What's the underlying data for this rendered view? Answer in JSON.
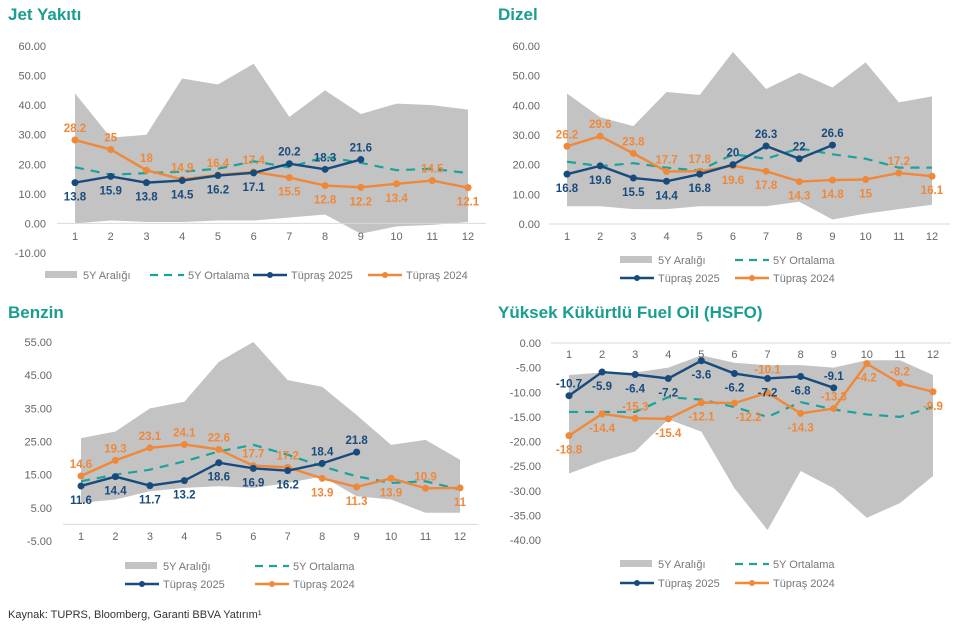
{
  "source": "Kaynak: TUPRS, Bloomberg, Garanti BBVA Yatırım¹",
  "legend": {
    "range": "5Y Aralığı",
    "avg": "5Y Ortalama",
    "s2025": "Tüpraş 2025",
    "s2024": "Tüpraş 2024"
  },
  "colors": {
    "range": "#c3c3c3",
    "avg": "#1aa39a",
    "s2025": "#184b7d",
    "s2024": "#f0883a",
    "title": "#1a9e8f"
  },
  "chart_data": [
    {
      "type": "line",
      "title": "Jet Yakıtı",
      "categories": [
        1,
        2,
        3,
        4,
        5,
        6,
        7,
        8,
        9,
        10,
        11,
        12
      ],
      "ylim": [
        -10,
        60
      ],
      "yticks": [
        "-10.00",
        "0.00",
        "10.00",
        "20.00",
        "30.00",
        "40.00",
        "50.00",
        "60.00"
      ],
      "range_max": [
        44,
        29,
        30,
        49,
        47,
        54,
        36,
        45,
        37,
        40.5,
        40,
        38.5
      ],
      "range_min": [
        0,
        1,
        0.5,
        0.5,
        1,
        1,
        2,
        3,
        -3.5,
        -1,
        -0.5,
        0.5
      ],
      "avg": [
        19,
        16.5,
        17,
        17.5,
        18.5,
        21,
        19,
        22.5,
        20.5,
        18,
        18.5,
        17
      ],
      "s2025": [
        13.8,
        15.9,
        13.8,
        14.5,
        16.2,
        17.1,
        20.2,
        18.3,
        21.6
      ],
      "s2024": [
        28.2,
        25,
        18,
        14.9,
        16.4,
        17.4,
        15.5,
        12.8,
        12.2,
        13.4,
        14.5,
        12.1
      ]
    },
    {
      "type": "line",
      "title": "Dizel",
      "categories": [
        1,
        2,
        3,
        4,
        5,
        6,
        7,
        8,
        9,
        10,
        11,
        12
      ],
      "ylim": [
        0,
        60
      ],
      "yticks": [
        "0.00",
        "10.00",
        "20.00",
        "30.00",
        "40.00",
        "50.00",
        "60.00"
      ],
      "range_max": [
        44,
        36,
        33,
        44.5,
        43.5,
        58,
        45.5,
        51,
        46,
        54.5,
        41,
        43
      ],
      "range_min": [
        6,
        6,
        5,
        5,
        6,
        6,
        6,
        7.5,
        1.5,
        3.5,
        5,
        6.5
      ],
      "avg": [
        21,
        19.5,
        20.5,
        19,
        18,
        23.5,
        22,
        25.5,
        23.5,
        22,
        19,
        19
      ],
      "s2025": [
        16.8,
        19.6,
        15.5,
        14.4,
        16.8,
        20,
        26.3,
        22,
        26.6
      ],
      "s2024": [
        26.2,
        29.6,
        23.8,
        17.7,
        17.8,
        19.6,
        17.8,
        14.3,
        14.8,
        15,
        17.2,
        16.1
      ]
    },
    {
      "type": "line",
      "title": "Benzin",
      "categories": [
        1,
        2,
        3,
        4,
        5,
        6,
        7,
        8,
        9,
        10,
        11,
        12
      ],
      "ylim": [
        -5,
        55
      ],
      "yticks": [
        "-5.00",
        "5.00",
        "15.00",
        "25.00",
        "35.00",
        "45.00",
        "55.00"
      ],
      "range_max": [
        26,
        28,
        35,
        37,
        49,
        55,
        43.5,
        41.5,
        33,
        24,
        25.5,
        19.5
      ],
      "range_min": [
        6.5,
        7.5,
        10,
        11,
        11.5,
        11,
        12.5,
        14.5,
        8.5,
        7.5,
        3.5,
        3.5
      ],
      "avg": [
        13,
        15,
        16.5,
        19,
        22,
        24,
        21,
        17.5,
        14.5,
        12.5,
        13,
        10.5
      ],
      "s2025": [
        11.6,
        14.4,
        11.7,
        13.2,
        18.6,
        16.9,
        16.2,
        18.4,
        21.8
      ],
      "s2024": [
        14.6,
        19.3,
        23.1,
        24.1,
        22.6,
        17.7,
        17.2,
        13.9,
        11.3,
        13.9,
        10.9,
        11
      ]
    },
    {
      "type": "line",
      "title": "Yüksek Kükürtlü Fuel Oil (HSFO)",
      "categories": [
        1,
        2,
        3,
        4,
        5,
        6,
        7,
        8,
        9,
        10,
        11,
        12
      ],
      "ylim": [
        -40,
        0
      ],
      "yticks": [
        "-40.00",
        "-35.00",
        "-30.00",
        "-25.00",
        "-20.00",
        "-15.00",
        "-10.00",
        "-5.00",
        "0.00"
      ],
      "range_max": [
        -6.5,
        -6,
        -6,
        -5,
        -2.5,
        -4,
        -4.5,
        -4.5,
        -5,
        -3.5,
        -3.5,
        -6.5
      ],
      "range_min": [
        -26.5,
        -24,
        -22,
        -15.5,
        -18,
        -29.5,
        -38,
        -26,
        -29.5,
        -35.5,
        -32.5,
        -27
      ],
      "avg": [
        -14,
        -14,
        -14,
        -11,
        -11.5,
        -13,
        -15,
        -12,
        -13.5,
        -14.5,
        -15,
        -13
      ],
      "s2025": [
        -10.7,
        -5.9,
        -6.4,
        -7.2,
        -3.6,
        -6.2,
        -7.2,
        -6.8,
        -9.1
      ],
      "s2024": [
        -18.8,
        -14.4,
        -15.3,
        -15.4,
        -12.1,
        -12.2,
        -10.1,
        -14.3,
        -13.3,
        -4.2,
        -8.2,
        -9.9
      ]
    }
  ]
}
